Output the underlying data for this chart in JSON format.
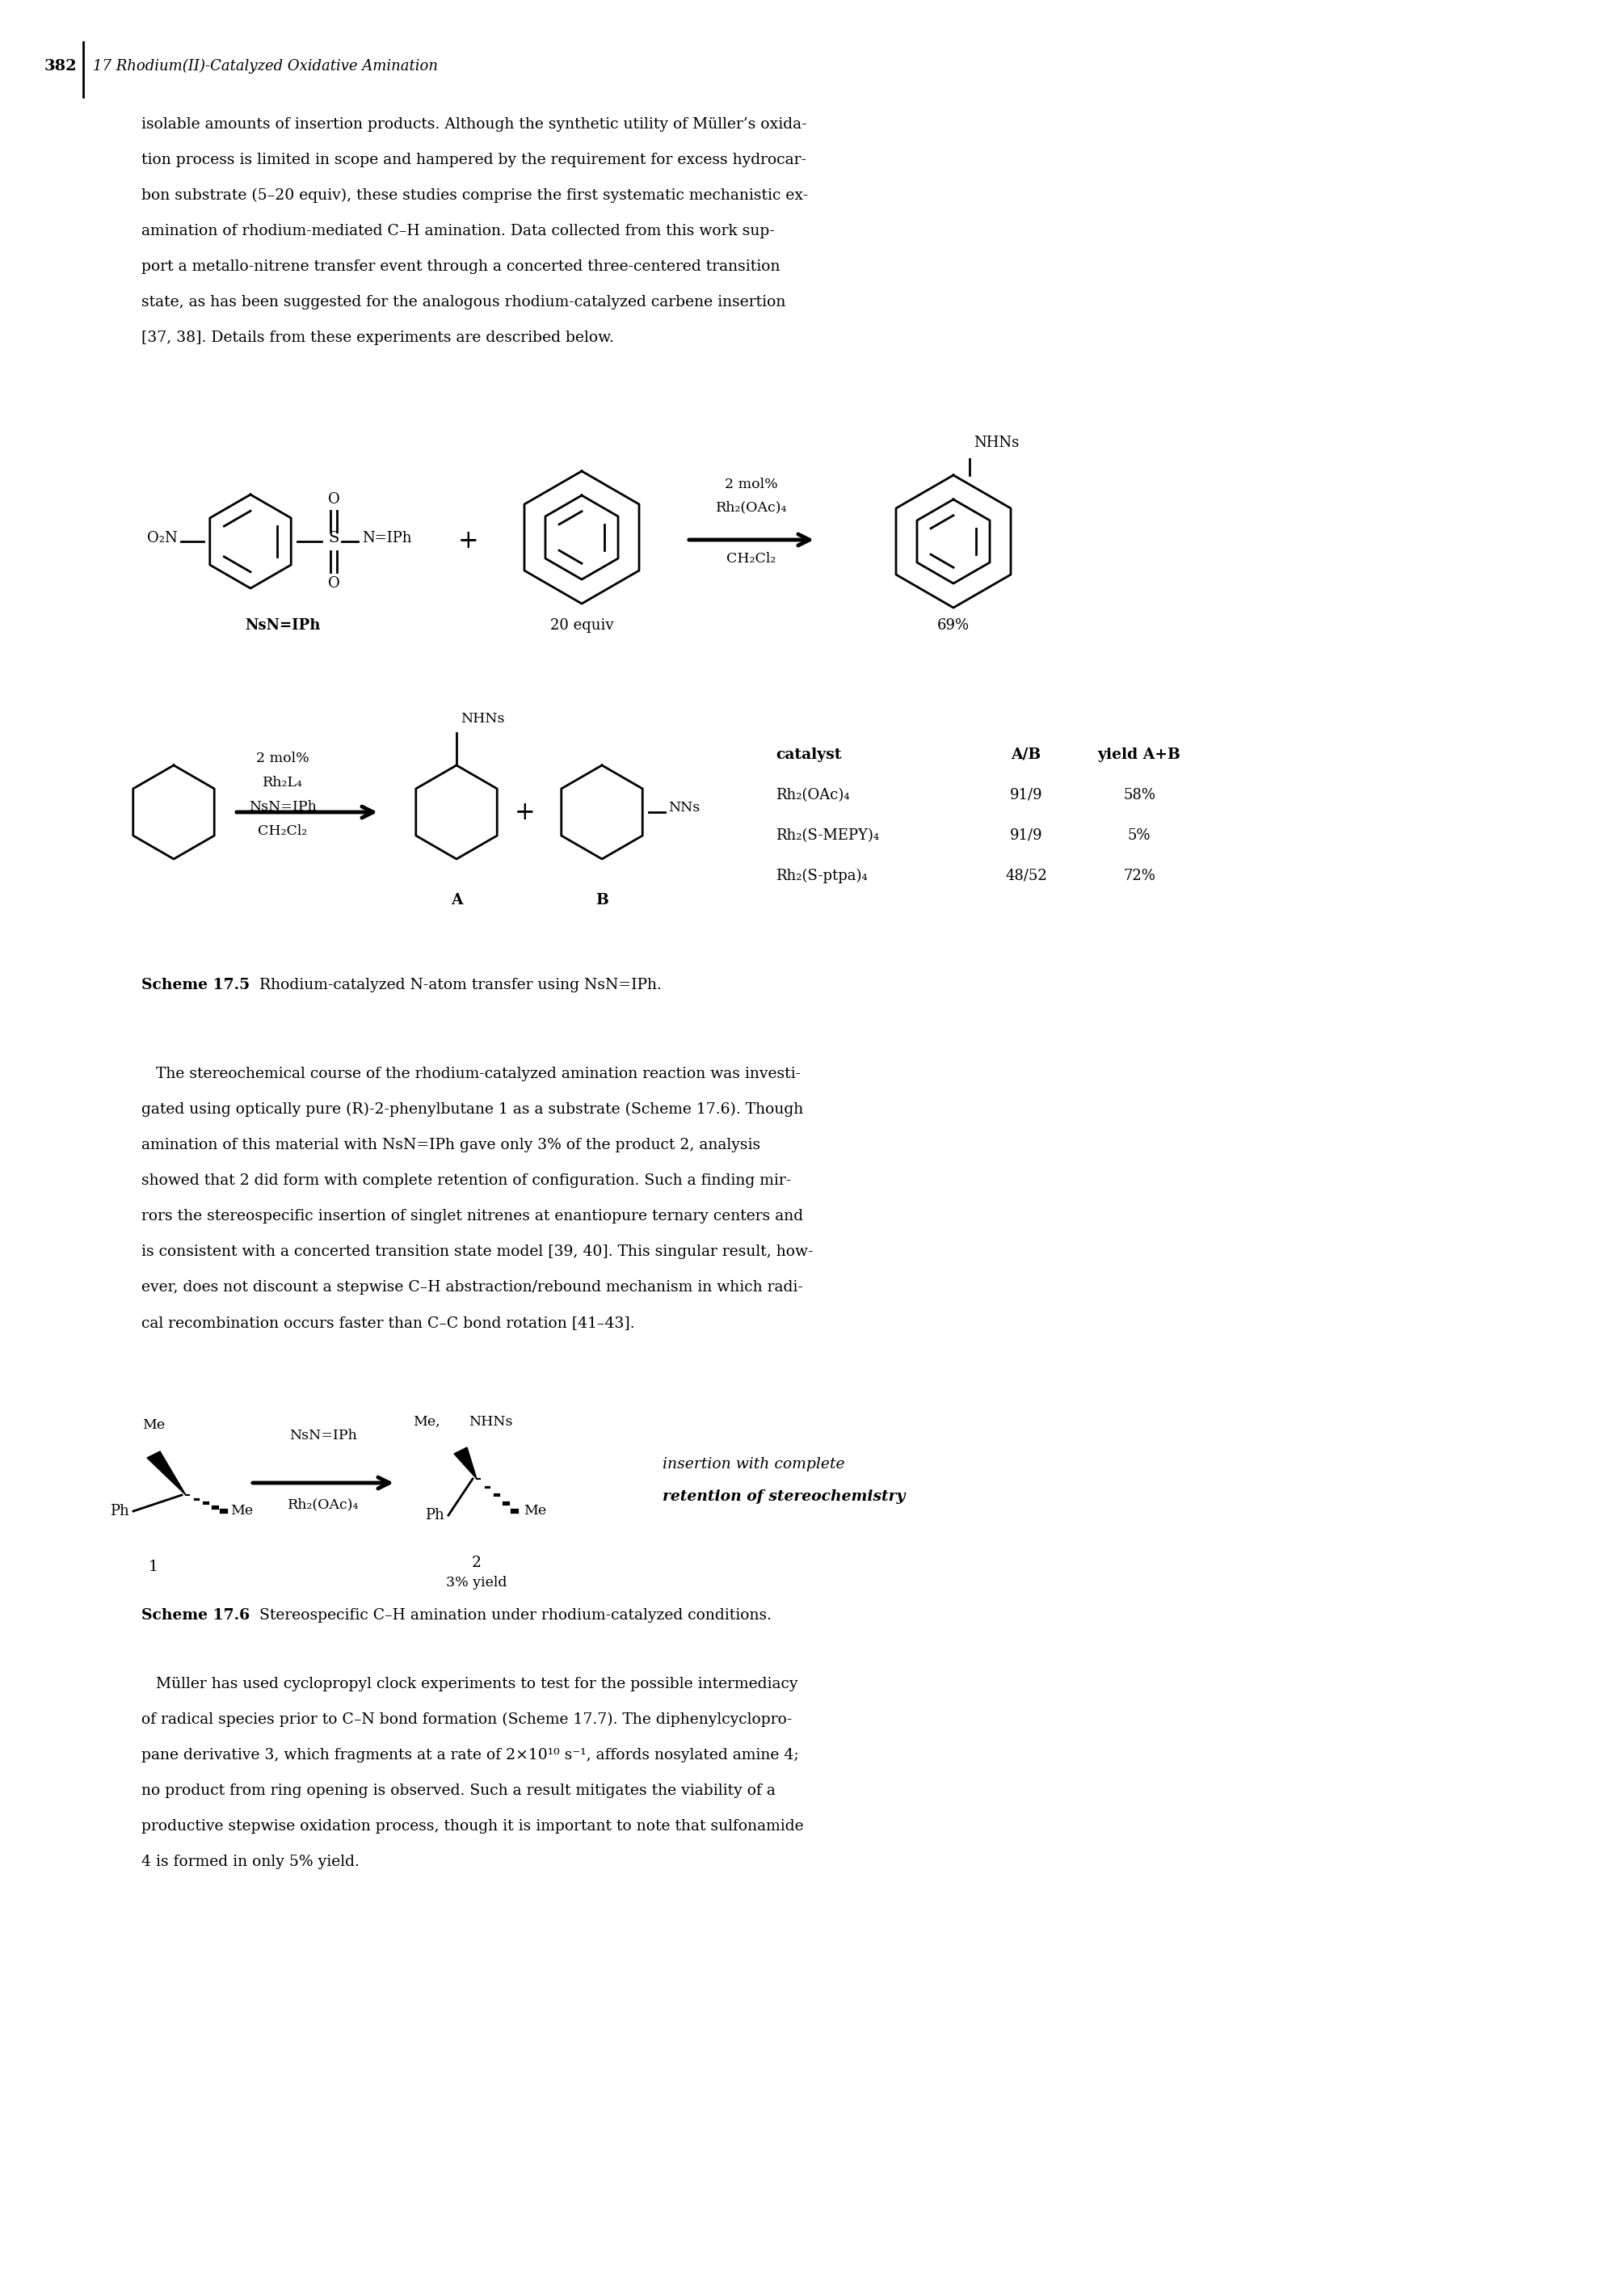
{
  "page_number": "382",
  "chapter_header": "17 Rhodium(II)-Catalyzed Oxidative Amination",
  "para1_lines": [
    "isolable amounts of insertion products. Although the synthetic utility of Müller’s oxida-",
    "tion process is limited in scope and hampered by the requirement for excess hydrocar-",
    "bon substrate (5–20 equiv), these studies comprise the first systematic mechanistic ex-",
    "amination of rhodium-mediated C–H amination. Data collected from this work sup-",
    "port a metallo-nitrene transfer event through a concerted three-centered transition",
    "state, as has been suggested for the analogous rhodium-catalyzed carbene insertion",
    "[37, 38]. Details from these experiments are described below."
  ],
  "para2_lines": [
    "   The stereochemical course of the rhodium-catalyzed amination reaction was investi-",
    "gated using optically pure (R)-2-phenylbutane 1 as a substrate (Scheme 17.6). Though",
    "amination of this material with NsN=IPh gave only 3% of the product 2, analysis",
    "showed that 2 did form with complete retention of configuration. Such a finding mir-",
    "rors the stereospecific insertion of singlet nitrenes at enantiopure ternary centers and",
    "is consistent with a concerted transition state model [39, 40]. This singular result, how-",
    "ever, does not discount a stepwise C–H abstraction/rebound mechanism in which radi-",
    "cal recombination occurs faster than C–C bond rotation [41–43]."
  ],
  "para3_lines": [
    "   Müller has used cyclopropyl clock experiments to test for the possible intermediacy",
    "of radical species prior to C–N bond formation (Scheme 17.7). The diphenylcyclopro-",
    "pane derivative 3, which fragments at a rate of 2×10¹⁰ s⁻¹, affords nosylated amine 4;",
    "no product from ring opening is observed. Such a result mitigates the viability of a",
    "productive stepwise oxidation process, though it is important to note that sulfonamide",
    "4 is formed in only 5% yield."
  ],
  "scheme55_caption_bold": "Scheme 17.5",
  "scheme55_caption_normal": "   Rhodium-catalyzed N-atom transfer using NsN=IPh.",
  "scheme56_caption_bold": "Scheme 17.6",
  "scheme56_caption_normal": "   Stereospecific C–H amination under rhodium-catalyzed conditions.",
  "table_header": [
    "catalyst",
    "A/B",
    "yield A+B"
  ],
  "table_rows": [
    [
      "Rh₂(OAc)₄",
      "91/9",
      "58%"
    ],
    [
      "Rh₂(S-MEPY)₄",
      "91/9",
      "5%"
    ],
    [
      "Rh₂(S-ptpa)₄",
      "48/52",
      "72%"
    ]
  ],
  "bg_color": "#ffffff",
  "text_color": "#000000",
  "lw": 2.0
}
